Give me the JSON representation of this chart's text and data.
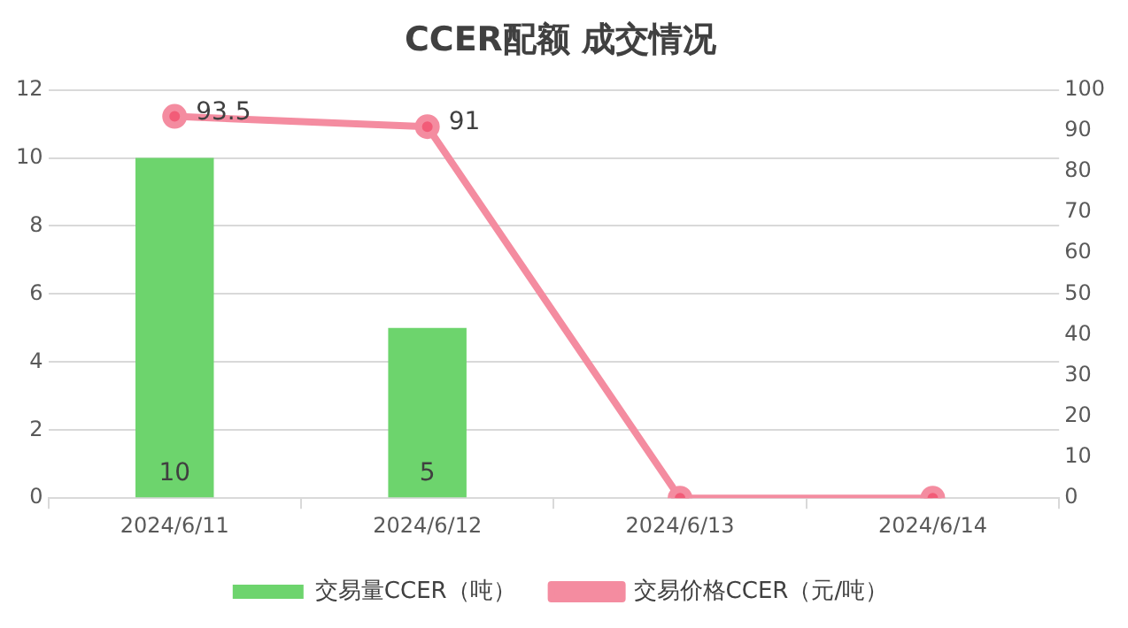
{
  "chart_data": {
    "type": "bar",
    "title": "CCER配额 成交情况",
    "categories": [
      "2024/6/11",
      "2024/6/12",
      "2024/6/13",
      "2024/6/14"
    ],
    "series": [
      {
        "name": "交易量CCER（吨）",
        "color": "#6dd46d",
        "values": [
          10,
          5,
          0,
          0
        ],
        "value_labels": [
          "10",
          "5",
          null,
          null
        ]
      },
      {
        "name": "交易价格CCER（元/吨）",
        "type": "line",
        "axis": "y2",
        "color": "#f48ca0",
        "values": [
          93.5,
          91,
          0,
          0
        ],
        "value_labels": [
          "93.5",
          "91",
          null,
          null
        ]
      }
    ],
    "ylim": [
      0,
      12
    ],
    "yticks": [
      0,
      2,
      4,
      6,
      8,
      10,
      12
    ],
    "y2lim": [
      0,
      100
    ],
    "y2ticks": [
      0,
      10,
      20,
      30,
      40,
      50,
      60,
      70,
      80,
      90,
      100
    ],
    "grid": "y",
    "legend": "bottom",
    "marker": "circle",
    "line_style": "solid"
  }
}
